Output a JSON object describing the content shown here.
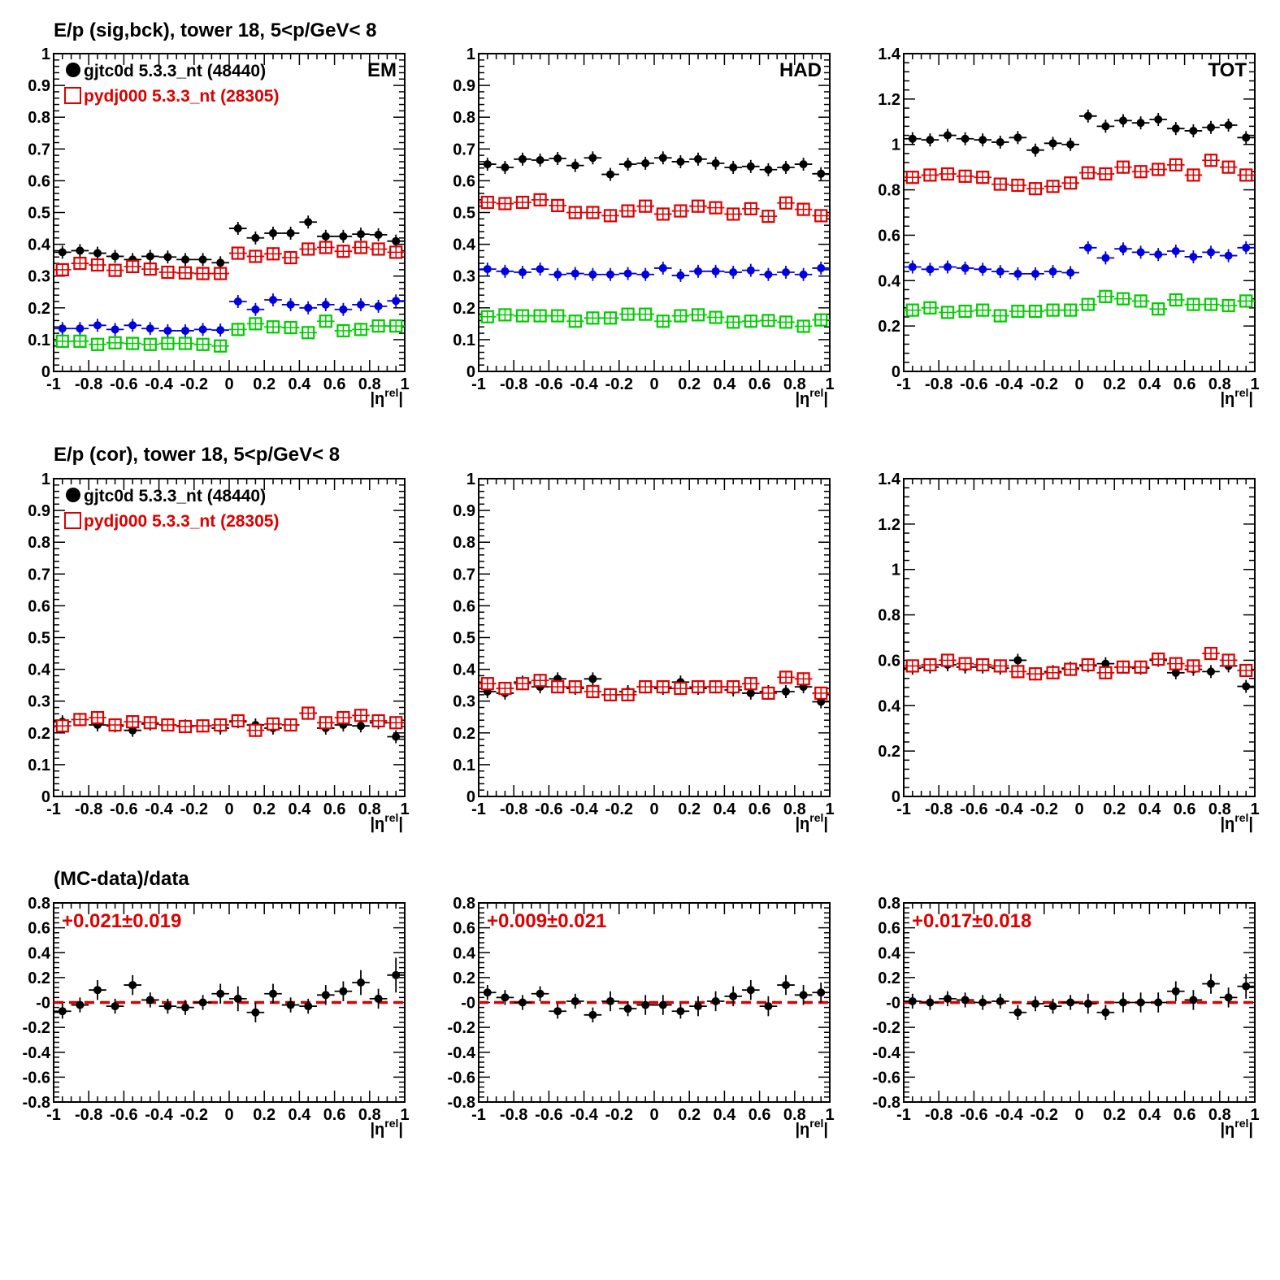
{
  "row_titles": [
    "E/p (sig,bck), tower 18,  5<p/GeV< 8",
    "E/p (cor), tower 18,  5<p/GeV< 8",
    "(MC-data)/data"
  ],
  "legend": {
    "data_label": "gjtc0d 5.3.3_nt (48440)",
    "mc_label": "pydj000 5.3.3_nt (28305)"
  },
  "panel_tags": [
    "EM",
    "HAD",
    "TOT"
  ],
  "colors": {
    "data": "#000000",
    "mc": "#dd0000",
    "data_bck": "#0000dd",
    "mc_bck": "#00cc00",
    "ratio_line": "#dd0000"
  },
  "chart_data": [
    {
      "type": "scatter",
      "title": "E/p (sig,bck), tower 18,  5<p/GeV< 8",
      "tag": "EM",
      "xlabel": "|η^rel|",
      "xlim": [
        -1,
        1
      ],
      "ylim": [
        0,
        1
      ],
      "xticks": [
        "-1",
        "-0.8",
        "-0.6",
        "-0.4",
        "-0.2",
        "0",
        "0.2",
        "0.4",
        "0.6",
        "0.8",
        "1"
      ],
      "yticks": [
        "0",
        "0.1",
        "0.2",
        "0.3",
        "0.4",
        "0.5",
        "0.6",
        "0.7",
        "0.8",
        "0.9",
        "1"
      ],
      "x": [
        -0.95,
        -0.85,
        -0.75,
        -0.65,
        -0.55,
        -0.45,
        -0.35,
        -0.25,
        -0.15,
        -0.05,
        0.05,
        0.15,
        0.25,
        0.35,
        0.45,
        0.55,
        0.65,
        0.75,
        0.85,
        0.95
      ],
      "series": [
        {
          "name": "gjtc0d 5.3.3_nt (48440)",
          "role": "data",
          "values": [
            0.375,
            0.38,
            0.372,
            0.362,
            0.352,
            0.362,
            0.36,
            0.352,
            0.352,
            0.342,
            0.45,
            0.42,
            0.435,
            0.435,
            0.47,
            0.425,
            0.425,
            0.432,
            0.43,
            0.41
          ]
        },
        {
          "name": "pydj000 5.3.3_nt (28305)",
          "role": "mc",
          "values": [
            0.32,
            0.34,
            0.335,
            0.318,
            0.33,
            0.322,
            0.312,
            0.31,
            0.308,
            0.308,
            0.372,
            0.362,
            0.37,
            0.358,
            0.385,
            0.39,
            0.378,
            0.39,
            0.385,
            0.375
          ]
        },
        {
          "role": "data_bck",
          "values": [
            0.135,
            0.135,
            0.145,
            0.132,
            0.145,
            0.135,
            0.128,
            0.128,
            0.132,
            0.13,
            0.22,
            0.195,
            0.225,
            0.21,
            0.2,
            0.21,
            0.195,
            0.21,
            0.205,
            0.222
          ]
        },
        {
          "role": "mc_bck",
          "values": [
            0.095,
            0.095,
            0.085,
            0.09,
            0.088,
            0.085,
            0.088,
            0.088,
            0.085,
            0.08,
            0.132,
            0.15,
            0.14,
            0.138,
            0.122,
            0.158,
            0.128,
            0.132,
            0.143,
            0.143
          ]
        }
      ]
    },
    {
      "type": "scatter",
      "tag": "HAD",
      "xlabel": "|η^rel|",
      "xlim": [
        -1,
        1
      ],
      "ylim": [
        0,
        1
      ],
      "xticks": [
        "-1",
        "-0.8",
        "-0.6",
        "-0.4",
        "-0.2",
        "0",
        "0.2",
        "0.4",
        "0.6",
        "0.8",
        "1"
      ],
      "yticks": [
        "0",
        "0.1",
        "0.2",
        "0.3",
        "0.4",
        "0.5",
        "0.6",
        "0.7",
        "0.8",
        "0.9",
        "1"
      ],
      "x": [
        -0.95,
        -0.85,
        -0.75,
        -0.65,
        -0.55,
        -0.45,
        -0.35,
        -0.25,
        -0.15,
        -0.05,
        0.05,
        0.15,
        0.25,
        0.35,
        0.45,
        0.55,
        0.65,
        0.75,
        0.85,
        0.95
      ],
      "series": [
        {
          "name": "gjtc0d 5.3.3_nt (48440)",
          "role": "data",
          "values": [
            0.652,
            0.642,
            0.668,
            0.665,
            0.67,
            0.648,
            0.672,
            0.62,
            0.652,
            0.655,
            0.672,
            0.66,
            0.668,
            0.655,
            0.642,
            0.645,
            0.635,
            0.642,
            0.652,
            0.622
          ]
        },
        {
          "name": "pydj000 5.3.3_nt (28305)",
          "role": "mc",
          "values": [
            0.532,
            0.528,
            0.532,
            0.54,
            0.522,
            0.5,
            0.5,
            0.49,
            0.505,
            0.52,
            0.495,
            0.505,
            0.52,
            0.515,
            0.495,
            0.512,
            0.488,
            0.53,
            0.51,
            0.49
          ]
        },
        {
          "role": "data_bck",
          "values": [
            0.322,
            0.315,
            0.312,
            0.322,
            0.305,
            0.308,
            0.305,
            0.305,
            0.308,
            0.305,
            0.325,
            0.302,
            0.315,
            0.315,
            0.312,
            0.318,
            0.305,
            0.312,
            0.305,
            0.325
          ]
        },
        {
          "role": "mc_bck",
          "values": [
            0.172,
            0.178,
            0.175,
            0.175,
            0.175,
            0.158,
            0.168,
            0.168,
            0.18,
            0.18,
            0.158,
            0.175,
            0.178,
            0.17,
            0.155,
            0.158,
            0.16,
            0.155,
            0.142,
            0.162
          ]
        }
      ]
    },
    {
      "type": "scatter",
      "tag": "TOT",
      "xlabel": "|η^rel|",
      "xlim": [
        -1,
        1
      ],
      "ylim": [
        0,
        1.4
      ],
      "xticks": [
        "-1",
        "-0.8",
        "-0.6",
        "-0.4",
        "-0.2",
        "0",
        "0.2",
        "0.4",
        "0.6",
        "0.8",
        "1"
      ],
      "yticks": [
        "0",
        "0.2",
        "0.4",
        "0.6",
        "0.8",
        "1",
        "1.2",
        "1.4"
      ],
      "x": [
        -0.95,
        -0.85,
        -0.75,
        -0.65,
        -0.55,
        -0.45,
        -0.35,
        -0.25,
        -0.15,
        -0.05,
        0.05,
        0.15,
        0.25,
        0.35,
        0.45,
        0.55,
        0.65,
        0.75,
        0.85,
        0.95
      ],
      "series": [
        {
          "name": "gjtc0d 5.3.3_nt (48440)",
          "role": "data",
          "values": [
            1.025,
            1.02,
            1.04,
            1.025,
            1.02,
            1.01,
            1.03,
            0.975,
            1.005,
            1.0,
            1.125,
            1.08,
            1.105,
            1.095,
            1.11,
            1.07,
            1.06,
            1.075,
            1.085,
            1.03
          ]
        },
        {
          "name": "pydj000 5.3.3_nt (28305)",
          "role": "mc",
          "values": [
            0.855,
            0.865,
            0.87,
            0.86,
            0.855,
            0.825,
            0.82,
            0.805,
            0.815,
            0.83,
            0.875,
            0.87,
            0.9,
            0.88,
            0.89,
            0.91,
            0.865,
            0.93,
            0.9,
            0.865
          ]
        },
        {
          "role": "data_bck",
          "values": [
            0.46,
            0.45,
            0.46,
            0.455,
            0.45,
            0.44,
            0.43,
            0.43,
            0.44,
            0.435,
            0.545,
            0.5,
            0.54,
            0.525,
            0.515,
            0.53,
            0.505,
            0.525,
            0.51,
            0.545
          ]
        },
        {
          "role": "mc_bck",
          "values": [
            0.27,
            0.28,
            0.26,
            0.265,
            0.27,
            0.245,
            0.265,
            0.265,
            0.27,
            0.27,
            0.295,
            0.33,
            0.32,
            0.31,
            0.275,
            0.315,
            0.295,
            0.295,
            0.29,
            0.31
          ]
        }
      ]
    },
    {
      "type": "scatter",
      "title": "E/p (cor), tower 18,  5<p/GeV< 8",
      "xlabel": "|η^rel|",
      "xlim": [
        -1,
        1
      ],
      "ylim": [
        0,
        1
      ],
      "xticks": [
        "-1",
        "-0.8",
        "-0.6",
        "-0.4",
        "-0.2",
        "0",
        "0.2",
        "0.4",
        "0.6",
        "0.8",
        "1"
      ],
      "yticks": [
        "0",
        "0.1",
        "0.2",
        "0.3",
        "0.4",
        "0.5",
        "0.6",
        "0.7",
        "0.8",
        "0.9",
        "1"
      ],
      "x": [
        -0.95,
        -0.85,
        -0.75,
        -0.65,
        -0.55,
        -0.45,
        -0.35,
        -0.25,
        -0.15,
        -0.05,
        0.05,
        0.15,
        0.25,
        0.35,
        0.45,
        0.55,
        0.65,
        0.75,
        0.85,
        0.95
      ],
      "series": [
        {
          "name": "gjtc0d 5.3.3_nt (48440)",
          "role": "data",
          "values": [
            0.235,
            0.242,
            0.225,
            0.222,
            0.208,
            0.228,
            0.225,
            0.222,
            0.222,
            0.215,
            0.235,
            0.225,
            0.215,
            0.225,
            0.262,
            0.215,
            0.225,
            0.222,
            0.232,
            0.188
          ]
        },
        {
          "name": "pydj000 5.3.3_nt (28305)",
          "role": "mc",
          "values": [
            0.222,
            0.242,
            0.248,
            0.225,
            0.235,
            0.232,
            0.225,
            0.22,
            0.222,
            0.225,
            0.238,
            0.208,
            0.228,
            0.225,
            0.262,
            0.232,
            0.248,
            0.255,
            0.238,
            0.232
          ]
        }
      ]
    },
    {
      "type": "scatter",
      "xlabel": "|η^rel|",
      "xlim": [
        -1,
        1
      ],
      "ylim": [
        0,
        1
      ],
      "xticks": [
        "-1",
        "-0.8",
        "-0.6",
        "-0.4",
        "-0.2",
        "0",
        "0.2",
        "0.4",
        "0.6",
        "0.8",
        "1"
      ],
      "yticks": [
        "0",
        "0.1",
        "0.2",
        "0.3",
        "0.4",
        "0.5",
        "0.6",
        "0.7",
        "0.8",
        "0.9",
        "1"
      ],
      "x": [
        -0.95,
        -0.85,
        -0.75,
        -0.65,
        -0.55,
        -0.45,
        -0.35,
        -0.25,
        -0.15,
        -0.05,
        0.05,
        0.15,
        0.25,
        0.35,
        0.45,
        0.55,
        0.65,
        0.75,
        0.85,
        0.95
      ],
      "series": [
        {
          "name": "gjtc0d 5.3.3_nt (48440)",
          "role": "data",
          "values": [
            0.33,
            0.325,
            0.36,
            0.345,
            0.37,
            0.34,
            0.37,
            0.32,
            0.33,
            0.345,
            0.34,
            0.36,
            0.34,
            0.345,
            0.335,
            0.325,
            0.33,
            0.33,
            0.345,
            0.298
          ]
        },
        {
          "name": "pydj000 5.3.3_nt (28305)",
          "role": "mc",
          "values": [
            0.355,
            0.34,
            0.355,
            0.365,
            0.345,
            0.345,
            0.33,
            0.32,
            0.32,
            0.345,
            0.345,
            0.34,
            0.345,
            0.345,
            0.345,
            0.355,
            0.325,
            0.375,
            0.37,
            0.325
          ]
        }
      ]
    },
    {
      "type": "scatter",
      "xlabel": "|η^rel|",
      "xlim": [
        -1,
        1
      ],
      "ylim": [
        0,
        1.4
      ],
      "xticks": [
        "-1",
        "-0.8",
        "-0.6",
        "-0.4",
        "-0.2",
        "0",
        "0.2",
        "0.4",
        "0.6",
        "0.8",
        "1"
      ],
      "yticks": [
        "0",
        "0.2",
        "0.4",
        "0.6",
        "0.8",
        "1",
        "1.2",
        "1.4"
      ],
      "x": [
        -0.95,
        -0.85,
        -0.75,
        -0.65,
        -0.55,
        -0.45,
        -0.35,
        -0.25,
        -0.15,
        -0.05,
        0.05,
        0.15,
        0.25,
        0.35,
        0.45,
        0.55,
        0.65,
        0.75,
        0.85,
        0.95
      ],
      "series": [
        {
          "name": "gjtc0d 5.3.3_nt (48440)",
          "role": "data",
          "values": [
            0.565,
            0.57,
            0.58,
            0.57,
            0.57,
            0.565,
            0.6,
            0.54,
            0.55,
            0.565,
            0.575,
            0.585,
            0.57,
            0.565,
            0.6,
            0.545,
            0.56,
            0.55,
            0.575,
            0.485
          ]
        },
        {
          "name": "pydj000 5.3.3_nt (28305)",
          "role": "mc",
          "values": [
            0.575,
            0.58,
            0.6,
            0.585,
            0.58,
            0.575,
            0.55,
            0.54,
            0.545,
            0.56,
            0.58,
            0.545,
            0.57,
            0.57,
            0.605,
            0.585,
            0.575,
            0.63,
            0.6,
            0.555
          ]
        }
      ]
    },
    {
      "type": "scatter",
      "title": "(MC-data)/data",
      "annotation": "+0.021±0.019",
      "xlabel": "|η^rel|",
      "xlim": [
        -1,
        1
      ],
      "ylim": [
        -0.8,
        0.8
      ],
      "xticks": [
        "-1",
        "-0.8",
        "-0.6",
        "-0.4",
        "-0.2",
        "0",
        "0.2",
        "0.4",
        "0.6",
        "0.8",
        "1"
      ],
      "yticks": [
        "-0.8",
        "-0.6",
        "-0.4",
        "-0.2",
        "-0",
        "0.2",
        "0.4",
        "0.6",
        "0.8"
      ],
      "x": [
        -0.95,
        -0.85,
        -0.75,
        -0.65,
        -0.55,
        -0.45,
        -0.35,
        -0.25,
        -0.15,
        -0.05,
        0.05,
        0.15,
        0.25,
        0.35,
        0.45,
        0.55,
        0.65,
        0.75,
        0.85,
        0.95
      ],
      "series": [
        {
          "role": "ratio",
          "values": [
            -0.07,
            -0.02,
            0.1,
            -0.03,
            0.14,
            0.02,
            -0.03,
            -0.04,
            0.0,
            0.07,
            0.03,
            -0.08,
            0.07,
            -0.02,
            -0.03,
            0.06,
            0.09,
            0.16,
            0.03,
            0.22
          ],
          "errors": [
            0.06,
            0.06,
            0.08,
            0.06,
            0.08,
            0.06,
            0.06,
            0.06,
            0.06,
            0.08,
            0.1,
            0.08,
            0.08,
            0.06,
            0.06,
            0.08,
            0.08,
            0.1,
            0.08,
            0.14
          ]
        }
      ]
    },
    {
      "type": "scatter",
      "annotation": "+0.009±0.021",
      "xlabel": "|η^rel|",
      "xlim": [
        -1,
        1
      ],
      "ylim": [
        -0.8,
        0.8
      ],
      "xticks": [
        "-1",
        "-0.8",
        "-0.6",
        "-0.4",
        "-0.2",
        "0",
        "0.2",
        "0.4",
        "0.6",
        "0.8",
        "1"
      ],
      "yticks": [
        "-0.8",
        "-0.6",
        "-0.4",
        "-0.2",
        "-0",
        "0.2",
        "0.4",
        "0.6",
        "0.8"
      ],
      "x": [
        -0.95,
        -0.85,
        -0.75,
        -0.65,
        -0.55,
        -0.45,
        -0.35,
        -0.25,
        -0.15,
        -0.05,
        0.05,
        0.15,
        0.25,
        0.35,
        0.45,
        0.55,
        0.65,
        0.75,
        0.85,
        0.95
      ],
      "series": [
        {
          "role": "ratio",
          "values": [
            0.08,
            0.04,
            0.0,
            0.07,
            -0.07,
            0.01,
            -0.1,
            0.01,
            -0.05,
            -0.02,
            -0.02,
            -0.07,
            -0.03,
            0.01,
            0.05,
            0.1,
            -0.03,
            0.14,
            0.06,
            0.08
          ],
          "errors": [
            0.06,
            0.06,
            0.06,
            0.06,
            0.06,
            0.06,
            0.06,
            0.08,
            0.06,
            0.08,
            0.08,
            0.06,
            0.08,
            0.08,
            0.08,
            0.08,
            0.08,
            0.08,
            0.08,
            0.08
          ]
        }
      ]
    },
    {
      "type": "scatter",
      "annotation": "+0.017±0.018",
      "xlabel": "|η^rel|",
      "xlim": [
        -1,
        1
      ],
      "ylim": [
        -0.8,
        0.8
      ],
      "xticks": [
        "-1",
        "-0.8",
        "-0.6",
        "-0.4",
        "-0.2",
        "0",
        "0.2",
        "0.4",
        "0.6",
        "0.8",
        "1"
      ],
      "yticks": [
        "-0.8",
        "-0.6",
        "-0.4",
        "-0.2",
        "-0",
        "0.2",
        "0.4",
        "0.6",
        "0.8"
      ],
      "x": [
        -0.95,
        -0.85,
        -0.75,
        -0.65,
        -0.55,
        -0.45,
        -0.35,
        -0.25,
        -0.15,
        -0.05,
        0.05,
        0.15,
        0.25,
        0.35,
        0.45,
        0.55,
        0.65,
        0.75,
        0.85,
        0.95
      ],
      "series": [
        {
          "role": "ratio",
          "values": [
            0.01,
            0.0,
            0.03,
            0.02,
            0.0,
            0.01,
            -0.08,
            -0.01,
            -0.03,
            0.0,
            -0.01,
            -0.08,
            0.0,
            0.0,
            0.0,
            0.09,
            0.02,
            0.15,
            0.04,
            0.13
          ],
          "errors": [
            0.06,
            0.06,
            0.06,
            0.06,
            0.06,
            0.06,
            0.06,
            0.06,
            0.06,
            0.06,
            0.08,
            0.06,
            0.08,
            0.08,
            0.08,
            0.08,
            0.08,
            0.08,
            0.08,
            0.1
          ]
        }
      ]
    }
  ]
}
